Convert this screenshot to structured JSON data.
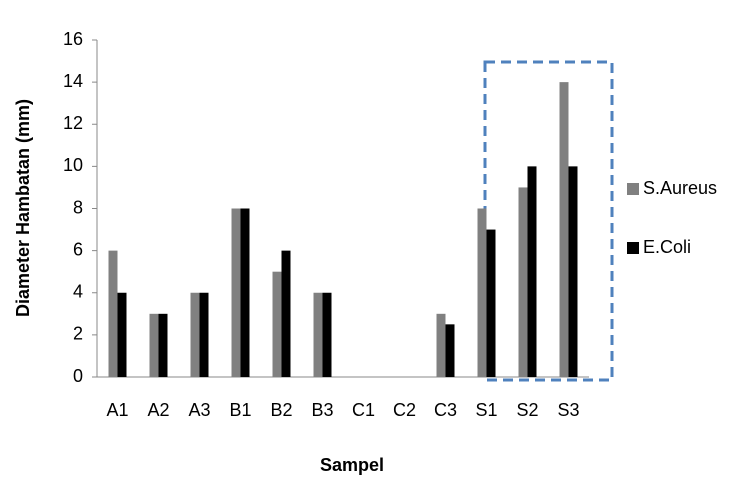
{
  "chart_data": {
    "type": "bar",
    "x_label": "Sampel",
    "y_label": "Diameter Hambatan (mm)",
    "categories": [
      "A1",
      "A2",
      "A3",
      "B1",
      "B2",
      "B3",
      "C1",
      "C2",
      "C3",
      "S1",
      "S2",
      "S3"
    ],
    "series": [
      {
        "name": "S.Aureus",
        "color": "#808080",
        "values": [
          6,
          3,
          4,
          8,
          5,
          4,
          0,
          0,
          3,
          8,
          9,
          14
        ]
      },
      {
        "name": "E.Coli",
        "color": "#000000",
        "values": [
          4,
          3,
          4,
          8,
          6,
          4,
          0,
          0,
          2.5,
          7,
          10,
          10
        ]
      }
    ],
    "ylim": [
      0,
      16
    ],
    "yticks": [
      0,
      2,
      4,
      6,
      8,
      10,
      12,
      14,
      16
    ],
    "grid": false,
    "legend": "right"
  }
}
